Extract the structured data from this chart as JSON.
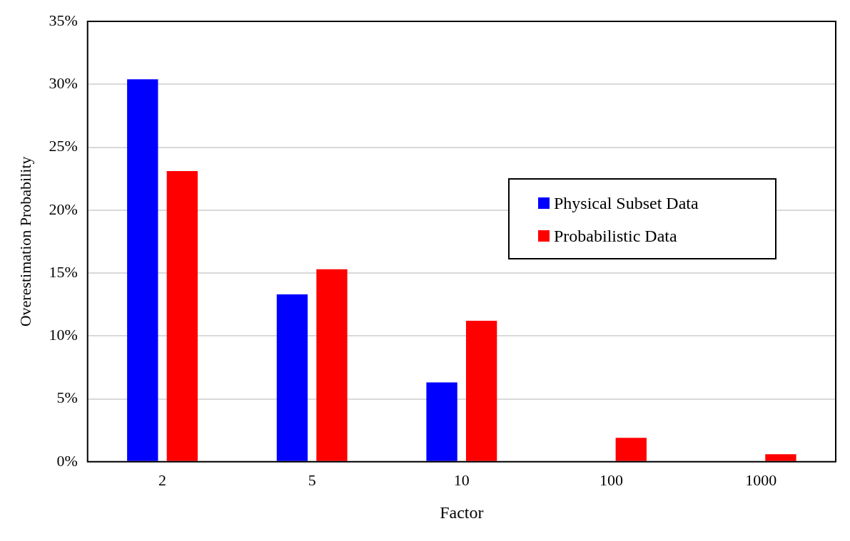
{
  "chart_data": {
    "type": "bar",
    "xlabel": "Factor",
    "ylabel": "Overestimation Probability",
    "categories": [
      "2",
      "5",
      "10",
      "100",
      "1000"
    ],
    "series": [
      {
        "name": "Physical Subset Data",
        "color": "#0000ff",
        "values": [
          30.4,
          13.3,
          6.3,
          0,
          0
        ]
      },
      {
        "name": "Probabilistic Data",
        "color": "#ff0000",
        "values": [
          23.1,
          15.3,
          11.2,
          1.9,
          0.6
        ]
      }
    ],
    "ylim": [
      0,
      35
    ],
    "yticks": [
      {
        "value": 0,
        "label": "0%"
      },
      {
        "value": 5,
        "label": "5%"
      },
      {
        "value": 10,
        "label": "10%"
      },
      {
        "value": 15,
        "label": "15%"
      },
      {
        "value": 20,
        "label": "20%"
      },
      {
        "value": 25,
        "label": "25%"
      },
      {
        "value": 30,
        "label": "30%"
      },
      {
        "value": 35,
        "label": "35%"
      }
    ],
    "grid": "y",
    "legend": "right"
  }
}
